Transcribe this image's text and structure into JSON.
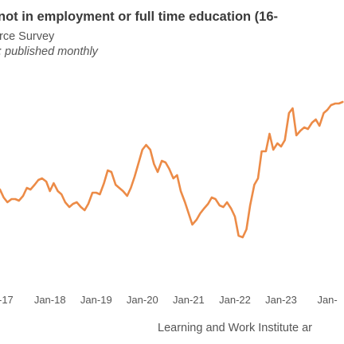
{
  "header": {
    "title": "not in employment or full time education (16-",
    "subtitle": "rce Survey",
    "note": "; published monthly"
  },
  "footer": {
    "source": "Learning and Work Institute ar"
  },
  "colors": {
    "line": "#ec8b47",
    "text": "#555555",
    "title": "#3a3a3a"
  },
  "chart_data": {
    "type": "line",
    "title": "",
    "xlabel": "",
    "ylabel": "",
    "grid": false,
    "legend": "none",
    "x_ticks": [
      {
        "x": 2017.0,
        "label": "-17"
      },
      {
        "x": 2018.0,
        "label": "Jan-18"
      },
      {
        "x": 2019.0,
        "label": "Jan-19"
      },
      {
        "x": 2020.0,
        "label": "Jan-20"
      },
      {
        "x": 2021.0,
        "label": "Jan-21"
      },
      {
        "x": 2022.0,
        "label": "Jan-22"
      },
      {
        "x": 2023.0,
        "label": "Jan-23"
      },
      {
        "x": 2024.0,
        "label": "Jan-"
      }
    ],
    "xlim": [
      2016.92,
      2024.36
    ],
    "ylim": [
      0,
      100
    ],
    "series": [
      {
        "x": [
          2016.92,
          2017.0,
          2017.08,
          2017.17,
          2017.25,
          2017.33,
          2017.42,
          2017.5,
          2017.58,
          2017.67,
          2017.75,
          2017.83,
          2017.92,
          2018.0,
          2018.08,
          2018.17,
          2018.25,
          2018.33,
          2018.42,
          2018.5,
          2018.58,
          2018.67,
          2018.75,
          2018.83,
          2018.92,
          2019.0,
          2019.08,
          2019.17,
          2019.25,
          2019.33,
          2019.42,
          2019.5,
          2019.58,
          2019.67,
          2019.75,
          2019.83,
          2019.92,
          2020.0,
          2020.08,
          2020.17,
          2020.25,
          2020.33,
          2020.42,
          2020.5,
          2020.58,
          2020.67,
          2020.75,
          2020.83,
          2020.92,
          2021.0,
          2021.08,
          2021.17,
          2021.25,
          2021.33,
          2021.42,
          2021.5,
          2021.58,
          2021.67,
          2021.75,
          2021.83,
          2021.92,
          2022.0,
          2022.08,
          2022.17,
          2022.25,
          2022.33,
          2022.42,
          2022.5,
          2022.58,
          2022.67,
          2022.75,
          2022.83,
          2022.92,
          2023.0,
          2023.08,
          2023.17,
          2023.25,
          2023.33,
          2023.42,
          2023.5,
          2023.58,
          2023.67,
          2023.75,
          2023.83,
          2023.92,
          2024.0,
          2024.08,
          2024.17,
          2024.25,
          2024.33
        ],
        "values": [
          46,
          41,
          38,
          40,
          40,
          39,
          42,
          47,
          46,
          49,
          52,
          53,
          51,
          45,
          50,
          45,
          43,
          38,
          35,
          37,
          38,
          35,
          33,
          37,
          44,
          44,
          43,
          50,
          58,
          57,
          49,
          47,
          45,
          42,
          47,
          54,
          63,
          71,
          74,
          71,
          62,
          57,
          64,
          63,
          59,
          53,
          55,
          45,
          38,
          31,
          24,
          27,
          31,
          34,
          37,
          41,
          40,
          36,
          35,
          38,
          34,
          29,
          17,
          16,
          21,
          36,
          49,
          53,
          70,
          70,
          81,
          71,
          75,
          73,
          77,
          94,
          97,
          80,
          83,
          85,
          84,
          88,
          90,
          86,
          94,
          96,
          99,
          100,
          100,
          101
        ]
      }
    ]
  }
}
